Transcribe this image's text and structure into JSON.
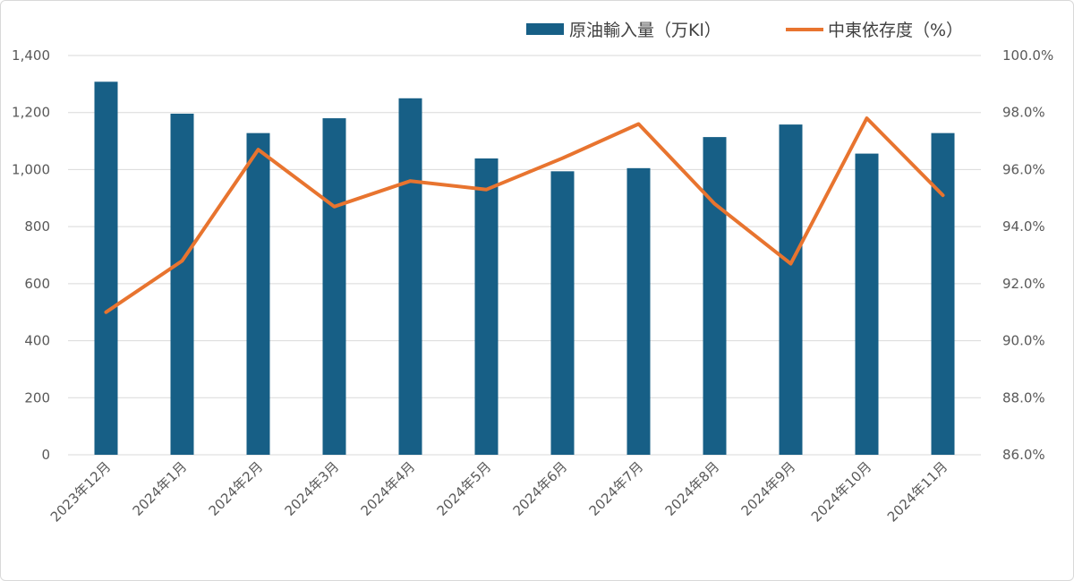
{
  "chart_data": {
    "type": "bar",
    "categories": [
      "2023年12月",
      "2024年1月",
      "2024年2月",
      "2024年3月",
      "2024年4月",
      "2024年5月",
      "2024年6月",
      "2024年7月",
      "2024年8月",
      "2024年9月",
      "2024年10月",
      "2024年11月"
    ],
    "series": [
      {
        "name": "原油輸入量（万Kl）",
        "type": "bar",
        "axis": "left",
        "color": "#175f86",
        "values": [
          1308,
          1196,
          1128,
          1180,
          1250,
          1039,
          994,
          1005,
          1114,
          1158,
          1056,
          1128
        ]
      },
      {
        "name": "中東依存度（%）",
        "type": "line",
        "axis": "right",
        "color": "#e8742f",
        "values": [
          91.0,
          92.8,
          96.7,
          94.7,
          95.6,
          95.3,
          96.4,
          97.6,
          94.8,
          92.7,
          97.8,
          95.1
        ]
      }
    ],
    "left_axis": {
      "ylim": [
        0,
        1400
      ],
      "ticks": [
        "0",
        "200",
        "400",
        "600",
        "800",
        "1,000",
        "1,200",
        "1,400"
      ]
    },
    "right_axis": {
      "ylim": [
        86.0,
        100.0
      ],
      "ticks": [
        "86.0%",
        "88.0%",
        "90.0%",
        "92.0%",
        "94.0%",
        "96.0%",
        "98.0%",
        "100.0%"
      ]
    },
    "grid": true,
    "legend_position": "top-right"
  }
}
